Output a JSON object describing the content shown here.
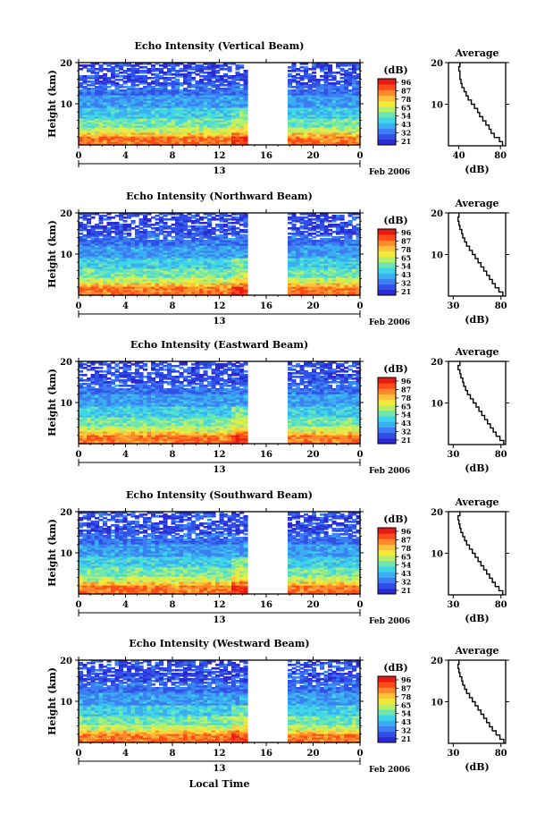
{
  "figure": {
    "xaxis_label": "Local Time",
    "colorbar_unit": "(dB)",
    "colorbar_ticks": [
      "96",
      "87",
      "78",
      "65",
      "54",
      "43",
      "32",
      "21"
    ],
    "colorscale": [
      "#2a2ad0",
      "#3050e8",
      "#3c7ff2",
      "#3aaef0",
      "#3ed6e8",
      "#6fe6b0",
      "#b8ef6a",
      "#f2ea3a",
      "#ffc23a",
      "#ff8a2a",
      "#ff4a1a",
      "#e81a14"
    ],
    "date_day": "13",
    "date_label": "Feb 2006"
  },
  "chart_data": [
    {
      "type": "heatmap",
      "title": "Echo Intensity (Vertical Beam)",
      "xlabel": "Local Time",
      "ylabel": "Height (km)",
      "x_ticks": [
        "0",
        "4",
        "8",
        "12",
        "16",
        "20",
        "0"
      ],
      "xlim": [
        0,
        24
      ],
      "ylim": [
        0,
        20
      ],
      "y_ticks": [
        "20",
        "10"
      ],
      "data_gap_hours": [
        14.5,
        18.0
      ],
      "value_range_dB": [
        21,
        96
      ],
      "average": {
        "title": "Average",
        "xlabel": "(dB)",
        "x_ticks": [
          "40",
          "80"
        ],
        "xlim": [
          30,
          85
        ],
        "y_ticks": [
          "20",
          "10"
        ],
        "profile": [
          [
            1,
            82
          ],
          [
            2,
            79
          ],
          [
            3,
            74
          ],
          [
            4,
            71
          ],
          [
            5,
            69
          ],
          [
            6,
            66
          ],
          [
            7,
            63
          ],
          [
            8,
            60
          ],
          [
            9,
            58
          ],
          [
            10,
            55
          ],
          [
            11,
            52
          ],
          [
            12,
            49
          ],
          [
            13,
            47
          ],
          [
            14,
            45
          ],
          [
            15,
            43
          ],
          [
            16,
            42
          ],
          [
            17,
            41
          ],
          [
            18,
            41
          ],
          [
            19,
            40
          ],
          [
            20,
            41
          ]
        ]
      }
    },
    {
      "type": "heatmap",
      "title": "Echo Intensity (Northward Beam)",
      "xlabel": "Local Time",
      "ylabel": "Height (km)",
      "x_ticks": [
        "0",
        "4",
        "8",
        "12",
        "16",
        "20",
        "0"
      ],
      "xlim": [
        0,
        24
      ],
      "ylim": [
        0,
        20
      ],
      "y_ticks": [
        "20",
        "10"
      ],
      "data_gap_hours": [
        14.5,
        18.0
      ],
      "value_range_dB": [
        21,
        96
      ],
      "average": {
        "title": "Average",
        "xlabel": "(dB)",
        "x_ticks": [
          "30",
          "80"
        ],
        "xlim": [
          25,
          85
        ],
        "y_ticks": [
          "20",
          "10"
        ],
        "profile": [
          [
            1,
            82
          ],
          [
            2,
            78
          ],
          [
            3,
            74
          ],
          [
            4,
            71
          ],
          [
            5,
            68
          ],
          [
            6,
            65
          ],
          [
            7,
            62
          ],
          [
            8,
            59
          ],
          [
            9,
            56
          ],
          [
            10,
            53
          ],
          [
            11,
            50
          ],
          [
            12,
            47
          ],
          [
            13,
            44
          ],
          [
            14,
            42
          ],
          [
            15,
            40
          ],
          [
            16,
            39
          ],
          [
            17,
            37
          ],
          [
            18,
            36
          ],
          [
            19,
            35
          ],
          [
            20,
            36
          ]
        ]
      }
    },
    {
      "type": "heatmap",
      "title": "Echo Intensity (Eastward Beam)",
      "xlabel": "Local Time",
      "ylabel": "Height (km)",
      "x_ticks": [
        "0",
        "4",
        "8",
        "12",
        "16",
        "20",
        "0"
      ],
      "xlim": [
        0,
        24
      ],
      "ylim": [
        0,
        20
      ],
      "y_ticks": [
        "20",
        "10"
      ],
      "data_gap_hours": [
        14.5,
        18.0
      ],
      "value_range_dB": [
        21,
        96
      ],
      "average": {
        "title": "Average",
        "xlabel": "(dB)",
        "x_ticks": [
          "30",
          "80"
        ],
        "xlim": [
          25,
          85
        ],
        "y_ticks": [
          "20",
          "10"
        ],
        "profile": [
          [
            1,
            83
          ],
          [
            2,
            79
          ],
          [
            3,
            75
          ],
          [
            4,
            72
          ],
          [
            5,
            69
          ],
          [
            6,
            66
          ],
          [
            7,
            63
          ],
          [
            8,
            60
          ],
          [
            9,
            57
          ],
          [
            10,
            54
          ],
          [
            11,
            51
          ],
          [
            12,
            48
          ],
          [
            13,
            45
          ],
          [
            14,
            43
          ],
          [
            15,
            41
          ],
          [
            16,
            40
          ],
          [
            17,
            38
          ],
          [
            18,
            37
          ],
          [
            19,
            35
          ],
          [
            20,
            37
          ]
        ]
      }
    },
    {
      "type": "heatmap",
      "title": "Echo Intensity (Southward Beam)",
      "xlabel": "Local Time",
      "ylabel": "Height (km)",
      "x_ticks": [
        "0",
        "4",
        "8",
        "12",
        "16",
        "20",
        "0"
      ],
      "xlim": [
        0,
        24
      ],
      "ylim": [
        0,
        20
      ],
      "y_ticks": [
        "20",
        "10"
      ],
      "data_gap_hours": [
        14.5,
        18.0
      ],
      "value_range_dB": [
        21,
        96
      ],
      "average": {
        "title": "Average",
        "xlabel": "(dB)",
        "x_ticks": [
          "30",
          "80"
        ],
        "xlim": [
          25,
          85
        ],
        "y_ticks": [
          "20",
          "10"
        ],
        "profile": [
          [
            1,
            82
          ],
          [
            2,
            78
          ],
          [
            3,
            74
          ],
          [
            4,
            71
          ],
          [
            5,
            68
          ],
          [
            6,
            65
          ],
          [
            7,
            62
          ],
          [
            8,
            59
          ],
          [
            9,
            56
          ],
          [
            10,
            53
          ],
          [
            11,
            50
          ],
          [
            12,
            47
          ],
          [
            13,
            44
          ],
          [
            14,
            42
          ],
          [
            15,
            40
          ],
          [
            16,
            38
          ],
          [
            17,
            37
          ],
          [
            18,
            36
          ],
          [
            19,
            35
          ],
          [
            20,
            37
          ]
        ]
      }
    },
    {
      "type": "heatmap",
      "title": "Echo Intensity (Westward Beam)",
      "xlabel": "Local Time",
      "ylabel": "Height (km)",
      "x_ticks": [
        "0",
        "4",
        "8",
        "12",
        "16",
        "20",
        "0"
      ],
      "xlim": [
        0,
        24
      ],
      "ylim": [
        0,
        20
      ],
      "y_ticks": [
        "20",
        "10"
      ],
      "data_gap_hours": [
        14.5,
        18.0
      ],
      "value_range_dB": [
        21,
        96
      ],
      "average": {
        "title": "Average",
        "xlabel": "(dB)",
        "x_ticks": [
          "30",
          "80"
        ],
        "xlim": [
          25,
          85
        ],
        "y_ticks": [
          "20",
          "10"
        ],
        "profile": [
          [
            1,
            83
          ],
          [
            2,
            79
          ],
          [
            3,
            75
          ],
          [
            4,
            71
          ],
          [
            5,
            68
          ],
          [
            6,
            65
          ],
          [
            7,
            62
          ],
          [
            8,
            59
          ],
          [
            9,
            56
          ],
          [
            10,
            53
          ],
          [
            11,
            50
          ],
          [
            12,
            47
          ],
          [
            13,
            44
          ],
          [
            14,
            42
          ],
          [
            15,
            40
          ],
          [
            16,
            39
          ],
          [
            17,
            37
          ],
          [
            18,
            36
          ],
          [
            19,
            35
          ],
          [
            20,
            36
          ]
        ]
      }
    }
  ]
}
